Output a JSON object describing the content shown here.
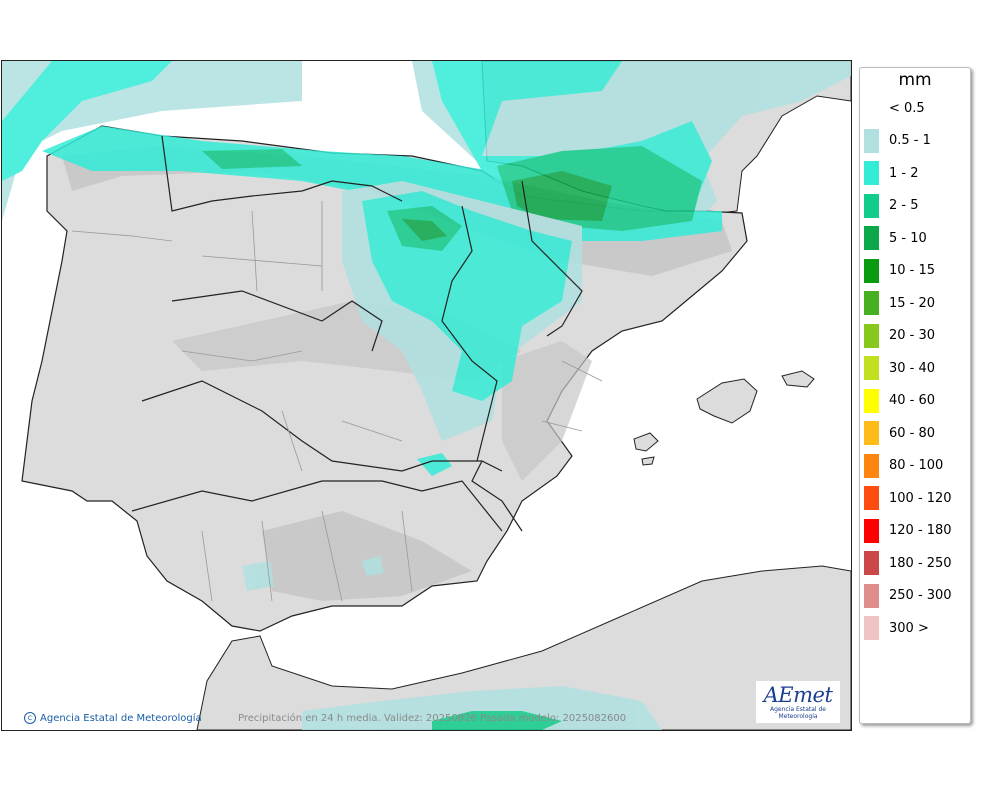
{
  "map": {
    "caption": "Precipitación en 24 h media. Validez: 20250826 Pasada modelo: 2025082600",
    "credit": "Agencia Estatal de Meteorología",
    "logo_text": "AEmet",
    "logo_subtext": "Agencia Estatal de Meteorología",
    "colors": {
      "sea": "#ffffff",
      "land": "#dcdcdc",
      "relief": "#bdbdbd",
      "coast": "#222222",
      "admin": "#999999"
    }
  },
  "legend": {
    "unit": "mm",
    "items": [
      {
        "label": "< 0.5",
        "color": ""
      },
      {
        "label": "0.5 - 1",
        "color": "#b0e0e0"
      },
      {
        "label": "1 - 2",
        "color": "#32ecd6"
      },
      {
        "label": "2 - 5",
        "color": "#12cc8a"
      },
      {
        "label": "5 - 10",
        "color": "#0aa848"
      },
      {
        "label": "10 - 15",
        "color": "#0a9a10"
      },
      {
        "label": "15 - 20",
        "color": "#46b020"
      },
      {
        "label": "20 - 30",
        "color": "#86c81c"
      },
      {
        "label": "30 - 40",
        "color": "#c2e020"
      },
      {
        "label": "40 - 60",
        "color": "#ffff00"
      },
      {
        "label": "60 - 80",
        "color": "#ffbc18"
      },
      {
        "label": "80 - 100",
        "color": "#ff8410"
      },
      {
        "label": "100 - 120",
        "color": "#ff4c10"
      },
      {
        "label": "120 - 180",
        "color": "#ff0000"
      },
      {
        "label": "180 - 250",
        "color": "#cc4848"
      },
      {
        "label": "250 - 300",
        "color": "#de8c8c"
      },
      {
        "label": "300 >",
        "color": "#f0c4c4"
      }
    ]
  }
}
